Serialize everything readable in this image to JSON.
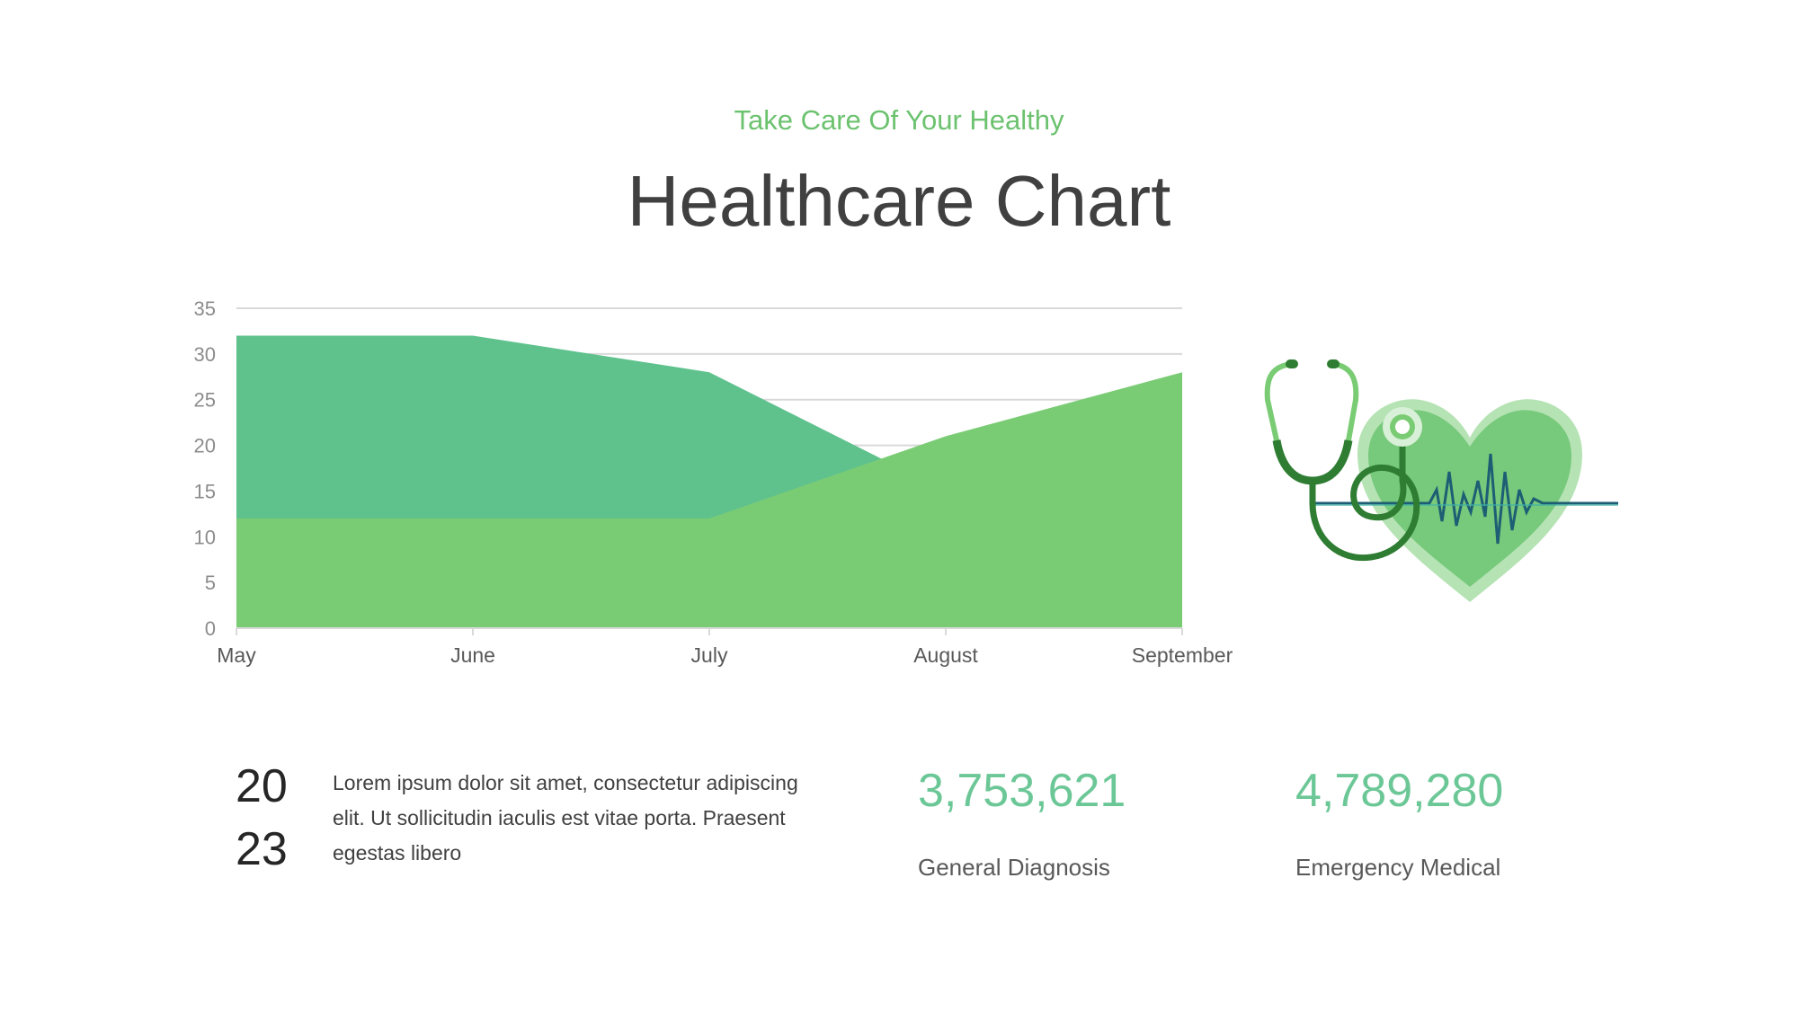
{
  "header": {
    "subtitle": "Take Care Of Your Healthy",
    "title": "Healthcare Chart"
  },
  "chart_data": {
    "type": "area",
    "title": "",
    "xlabel": "",
    "ylabel": "",
    "categories": [
      "May",
      "June",
      "July",
      "August",
      "September"
    ],
    "ylim": [
      0,
      35
    ],
    "yticks": [
      0,
      5,
      10,
      15,
      20,
      25,
      30,
      35
    ],
    "grid": true,
    "legend": "none",
    "series": [
      {
        "values": [
          32,
          32,
          28,
          15,
          5
        ],
        "color": "#5fc28d"
      },
      {
        "values": [
          12,
          12,
          12,
          21,
          28
        ],
        "color": "#7acc74"
      }
    ]
  },
  "footer": {
    "year_part1": "20",
    "year_part2": "23",
    "description": "Lorem ipsum dolor sit amet, consectetur adipiscing elit. Ut sollicitudin iaculis est vitae porta. Praesent egestas libero",
    "stats": [
      {
        "value": "3,753,621",
        "label": "General Diagnosis"
      },
      {
        "value": "4,789,280",
        "label": "Emergency Medical"
      }
    ]
  },
  "colors": {
    "accent": "#6cc26f",
    "stat": "#6cc797",
    "title": "#404040"
  },
  "illustration": {
    "icons": [
      "stethoscope-icon",
      "heart-icon",
      "heartbeat-line-icon"
    ]
  }
}
